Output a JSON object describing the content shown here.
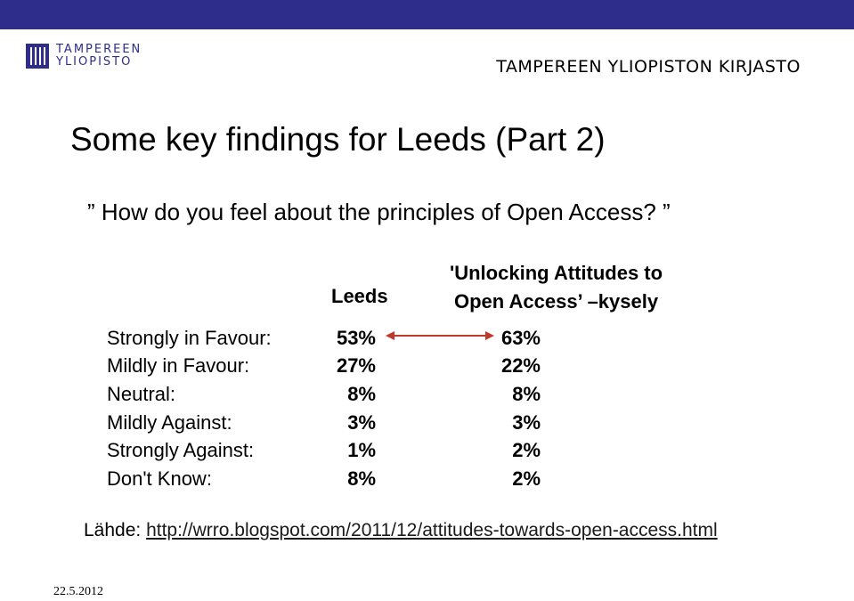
{
  "header": {
    "logo_line1": "TAMPEREEN",
    "logo_line2": "YLIOPISTO",
    "library_name": "TAMPEREEN YLIOPISTON KIRJASTO",
    "bar_color": "#2e2d8c"
  },
  "slide": {
    "title": "Some key findings for Leeds (Part 2)",
    "question": "” How do you feel about the principles of Open Access? ”"
  },
  "table": {
    "col_leeds": "Leeds",
    "col_unlocking_line1": "'Unlocking Attitudes to",
    "col_unlocking_line2": "Open Access’ –kysely",
    "rows": [
      {
        "category": "Strongly in Favour:",
        "leeds": "53%",
        "unlocking": "63%"
      },
      {
        "category": "Mildly in Favour:",
        "leeds": "27%",
        "unlocking": "22%"
      },
      {
        "category": "Neutral:",
        "leeds": "8%",
        "unlocking": "8%"
      },
      {
        "category": "Mildly Against:",
        "leeds": "3%",
        "unlocking": "3%"
      },
      {
        "category": "Strongly Against:",
        "leeds": "1%",
        "unlocking": "2%"
      },
      {
        "category": "Don't Know:",
        "leeds": "8%",
        "unlocking": "2%"
      }
    ],
    "arrow_color": "#c0392b"
  },
  "footer": {
    "source_label": "Lähde:",
    "source_link": "http://wrro.blogspot.com/2011/12/attitudes-towards-open-access.html",
    "date": "22.5.2012"
  }
}
